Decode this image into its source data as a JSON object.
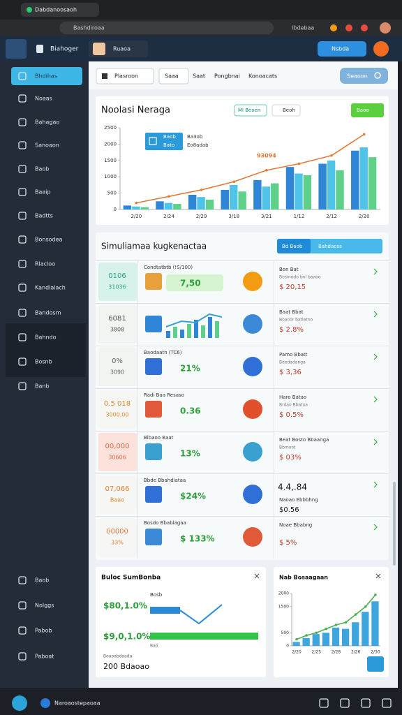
{
  "browser": {
    "tab": "Dabdanoosaoh",
    "address": "Bashdiroaa",
    "address_right": "Ibdebaa"
  },
  "header": {
    "app": "Biahoger",
    "profile": "Ruaoa",
    "button": "Nsbda"
  },
  "sidebar": {
    "items": [
      "Bhdihas",
      "Noaas",
      "Bahagao",
      "Sanoaon",
      "Baob",
      "Baaip",
      "Badtts",
      "Bonsodea",
      "Rlacloo",
      "Kandlalach",
      "Bandosm",
      "Bahndo",
      "Bosnb",
      "Banb"
    ],
    "bottom_items": [
      "Baob",
      "Nolggs",
      "Pabob",
      "Paboat"
    ]
  },
  "toolbar": {
    "items": [
      "Plasroon",
      "Saaa",
      "Saat",
      "Pongbnai",
      "Konoacats"
    ],
    "search": "Seaoon"
  },
  "card_main": {
    "buttons": [
      "Ml Beoen",
      "Beoh",
      "Baoo"
    ],
    "legend_title": "Baob",
    "legend_sub": "Bato",
    "legend_side": [
      "Ba3ob",
      "Eo8adab"
    ],
    "annotation": "93094"
  },
  "simulation": {
    "title": "Simuliamaa kugkenactaa",
    "tabs": [
      "Bd Baob",
      "Bahdaoss"
    ],
    "rows": [
      {
        "left": [
          "0106",
          "31036"
        ],
        "mid_title": "Condtatbtb (!S/100)",
        "mid_value": "7,50",
        "right_title": "Bon Bat",
        "right_sub": "Bosmodo bnl baaoo",
        "right_value": "$ 20,15"
      },
      {
        "left": [
          "6081",
          "3808"
        ],
        "right_title": "Baat Bbat",
        "right_sub": "Boaoor batlatno",
        "right_value": "$ 2.8%"
      },
      {
        "left": [
          "0%",
          "3090"
        ],
        "mid_title": "Baodaatn (TC6)",
        "mid_value": "21%",
        "right_title": "Pamo Bbatt",
        "right_sub": "Beedadanga",
        "right_value": "$ 3,36"
      },
      {
        "left": [
          "0.5 018",
          "3000,00"
        ],
        "mid_title": "Radi Baa Resaso",
        "mid_value": "0.36",
        "right_title": "Haro Batao",
        "right_sub": "Brdao Bbatna",
        "right_value": "$ 0.5%"
      },
      {
        "left": [
          "00,000",
          "30606"
        ],
        "mid_title": "Bibaoo Baat",
        "mid_value": "13%",
        "right_title": "Beat Bosto Bbaanga",
        "right_sub": "Bbmoot",
        "right_value": "$ 03%"
      },
      {
        "left": [
          "07,066",
          "Baao"
        ],
        "mid_title": "Bbde Bbahdiataa",
        "mid_value": "$24%",
        "right_big": "4.4,.84",
        "right_title": "Naoao Ebbbhng",
        "right_value": "$0.56"
      },
      {
        "left": [
          "00000",
          "33%"
        ],
        "mid_title": "Bosdo Bbablagaa",
        "mid_value": "$ 133%",
        "right_title": "Noae Bbabng",
        "right_value": "$ 5%"
      }
    ]
  },
  "summary": {
    "title": "Buloc SumBonba",
    "label": "Bosb",
    "values": [
      "$80,1.0%",
      "$9,0,1.0%"
    ],
    "captions": [
      "Boaoabdaada",
      "Bao"
    ],
    "footer": "200 Bdaoao"
  },
  "taskbar": {
    "label": "Naroaostepaoaa"
  },
  "chart_data": [
    {
      "type": "bar",
      "title": "Noolasi Neraga",
      "categories": [
        "2/20",
        "2/24",
        "2/29",
        "3/18",
        "3/21",
        "1/12",
        "2/12",
        "2/20"
      ],
      "series": [
        {
          "name": "Baob",
          "color": "#2f86d6",
          "values": [
            120,
            250,
            450,
            600,
            900,
            1300,
            1400,
            1800
          ]
        },
        {
          "name": "Bato",
          "color": "#4fc3e8",
          "values": [
            90,
            200,
            380,
            750,
            700,
            1100,
            1500,
            1900
          ]
        },
        {
          "name": "Ba3ob",
          "color": "#5fd08a",
          "values": [
            70,
            170,
            300,
            550,
            800,
            1050,
            1200,
            1600
          ]
        },
        {
          "name": "Eo8adab",
          "color": "#e07b39",
          "type": "line",
          "values": [
            200,
            400,
            600,
            850,
            1200,
            1400,
            1650,
            2300
          ]
        }
      ],
      "ylim": [
        0,
        2500
      ],
      "yticks": [
        0,
        500,
        1000,
        1500,
        2000,
        2500
      ]
    },
    {
      "type": "bar",
      "title": "Nab Bosaagaan",
      "categories": [
        "2/20",
        null,
        "2/25",
        null,
        "2/28",
        null,
        "2/26",
        null,
        "2/30"
      ],
      "series": [
        {
          "color": "#3ea6dc",
          "values": [
            150,
            300,
            450,
            500,
            700,
            650,
            900,
            1300,
            1700
          ]
        },
        {
          "color": "#4caf50",
          "type": "line",
          "values": [
            250,
            400,
            500,
            650,
            800,
            900,
            1200,
            1500,
            1950
          ]
        }
      ],
      "ylim": [
        0,
        2000
      ],
      "yticks": [
        0,
        500,
        1500,
        2000
      ]
    }
  ]
}
